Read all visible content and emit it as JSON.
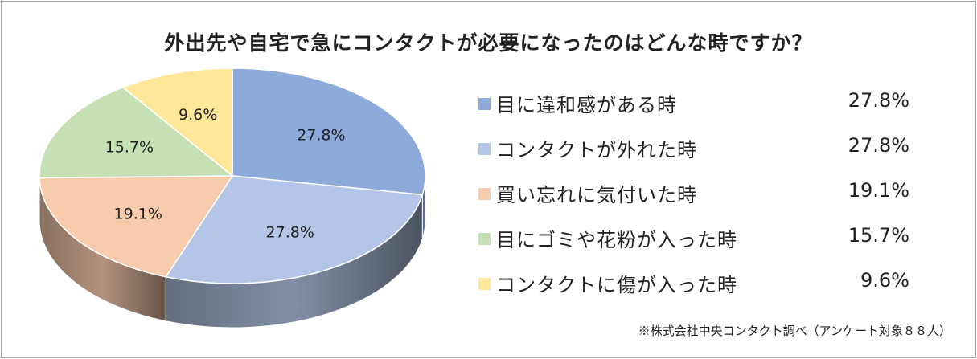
{
  "title": "外出先や自宅で急にコンタクトが必要になったのはどんな時ですか？",
  "source": "※株式会社中央コンタクト調べ（アンケート対象８８人）",
  "chart_data": {
    "type": "pie",
    "title": "外出先や自宅で急にコンタクトが必要になったのはどんな時ですか？",
    "legend_position": "right",
    "slices": [
      {
        "label": "目に違和感がある時",
        "value": 27.8,
        "display": "27.8%",
        "color": "#8eaadb"
      },
      {
        "label": "コンタクトが外れた時",
        "value": 27.8,
        "display": "27.8%",
        "color": "#b4c6e7"
      },
      {
        "label": "買い忘れに気付いた時",
        "value": 19.1,
        "display": "19.1%",
        "color": "#f8cbad"
      },
      {
        "label": "目にゴミや花粉が入った時",
        "value": 15.7,
        "display": "15.7%",
        "color": "#c5e0b4"
      },
      {
        "label": "コンタクトに傷が入った時",
        "value": 9.6,
        "display": "9.6%",
        "color": "#ffe699"
      }
    ]
  }
}
